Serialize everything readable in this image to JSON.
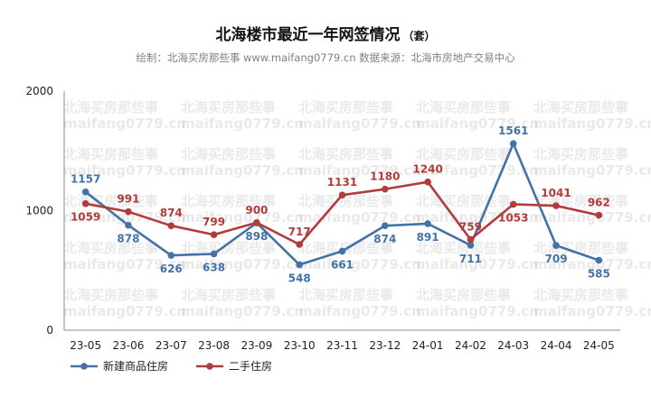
{
  "chart_data": {
    "type": "line",
    "title": "北海楼市最近一年网签情况",
    "title_unit": "（套）",
    "subtitle": "绘制：北海买房那些事 www.maifang0779.cn  数据来源：北海市房地产交易中心",
    "watermark": [
      "北海买房那些事",
      "maifang0779.cn"
    ],
    "categories": [
      "23-05",
      "23-06",
      "23-07",
      "23-08",
      "23-09",
      "23-10",
      "23-11",
      "23-12",
      "24-01",
      "24-02",
      "24-03",
      "24-04",
      "24-05"
    ],
    "yticks": [
      "0",
      "1000",
      "2000"
    ],
    "ylim": [
      0,
      2000
    ],
    "legend_position": "bottom-left",
    "series": [
      {
        "name": "新建商品住房",
        "color": "#4472a8",
        "values": [
          1157,
          878,
          626,
          638,
          898,
          548,
          661,
          874,
          891,
          711,
          1561,
          709,
          585
        ],
        "labels": [
          "1157",
          "878",
          "626",
          "638",
          "898",
          "548",
          "661",
          "874",
          "891",
          "711",
          "1561",
          "709",
          "585"
        ]
      },
      {
        "name": "二手住房",
        "color": "#b23b3b",
        "values": [
          1059,
          991,
          874,
          799,
          900,
          717,
          1131,
          1180,
          1240,
          759,
          1053,
          1041,
          962
        ],
        "labels": [
          "1059",
          "991",
          "874",
          "799",
          "900",
          "717",
          "1131",
          "1180",
          "1240",
          "759",
          "1053",
          "1041",
          "962"
        ]
      }
    ]
  }
}
